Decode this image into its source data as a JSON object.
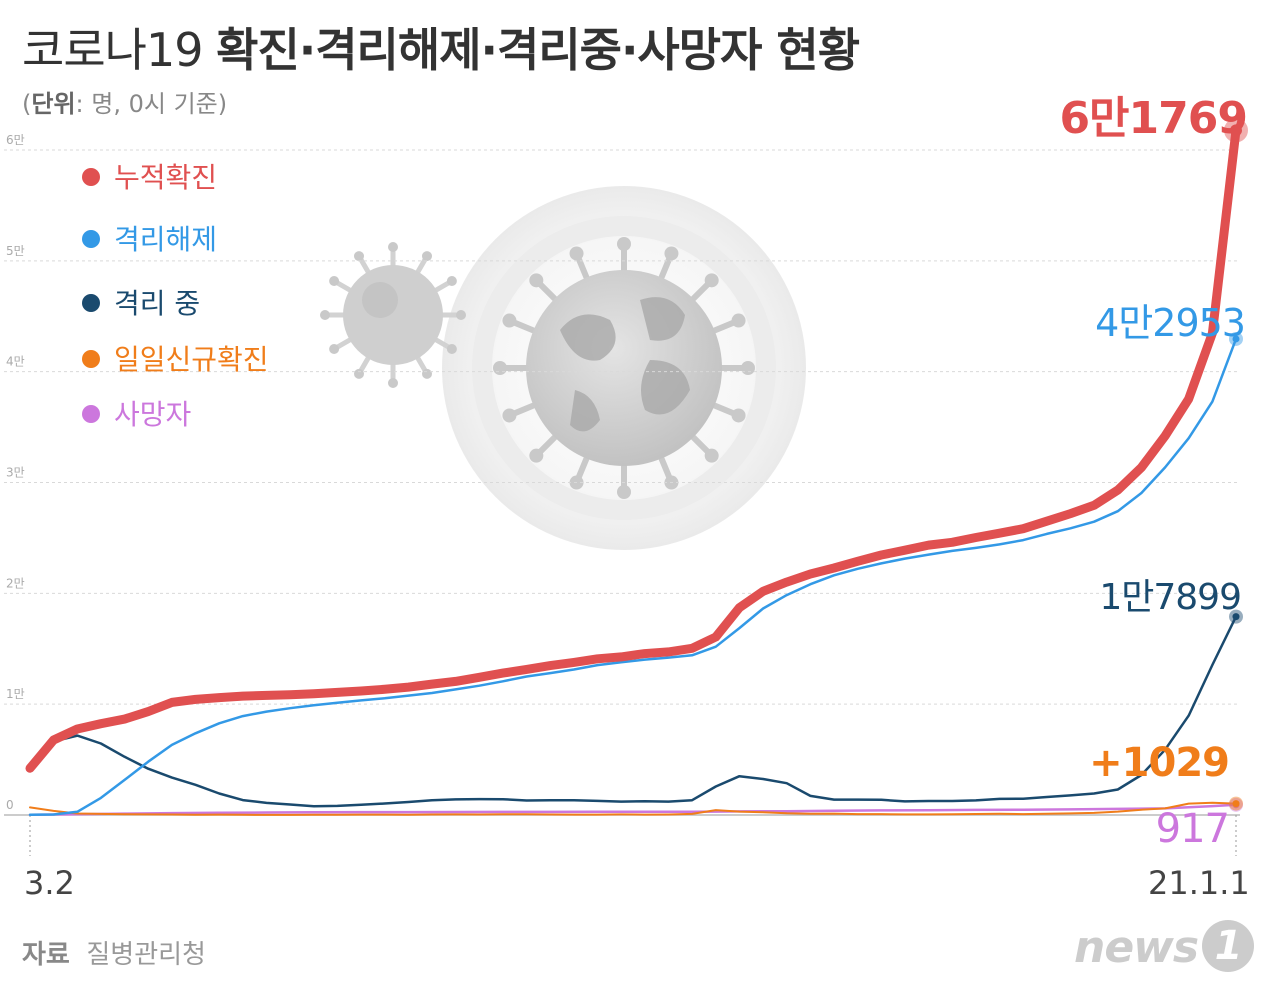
{
  "header": {
    "title_light": "코로나19 ",
    "title_bold": "확진·격리해제·격리중·사망자 현황",
    "unit_label": "단위",
    "unit_text": ": 명, 0시 기준)",
    "unit_open": "("
  },
  "chart_data": {
    "type": "line",
    "title": "코로나19 확진·격리해제·격리중·사망자 현황",
    "unit": "(단위: 명, 0시 기준)",
    "x_start_label": "3.2",
    "x_end_label": "21.1.1",
    "y_ticks": [
      "0",
      "1만",
      "2만",
      "3만",
      "4만",
      "5만",
      "6만"
    ],
    "ylim": [
      0,
      60000
    ],
    "grid": true,
    "legend_position": "top-left",
    "x_range_days": [
      0,
      306
    ],
    "series": [
      {
        "name": "누적확진",
        "color": "#e05050",
        "end_label": "6만1769",
        "end_value": 61769,
        "points": [
          [
            0,
            4212
          ],
          [
            6,
            6767
          ],
          [
            12,
            7755
          ],
          [
            18,
            8236
          ],
          [
            24,
            8652
          ],
          [
            30,
            9332
          ],
          [
            36,
            10156
          ],
          [
            42,
            10432
          ],
          [
            48,
            10591
          ],
          [
            54,
            10728
          ],
          [
            60,
            10790
          ],
          [
            66,
            10854
          ],
          [
            72,
            10936
          ],
          [
            78,
            11061
          ],
          [
            84,
            11191
          ],
          [
            90,
            11344
          ],
          [
            96,
            11541
          ],
          [
            102,
            11814
          ],
          [
            108,
            12051
          ],
          [
            114,
            12421
          ],
          [
            120,
            12800
          ],
          [
            126,
            13137
          ],
          [
            132,
            13479
          ],
          [
            138,
            13771
          ],
          [
            144,
            14092
          ],
          [
            150,
            14269
          ],
          [
            156,
            14562
          ],
          [
            162,
            14714
          ],
          [
            168,
            15039
          ],
          [
            174,
            16058
          ],
          [
            180,
            18706
          ],
          [
            186,
            20182
          ],
          [
            192,
            21010
          ],
          [
            198,
            21743
          ],
          [
            204,
            22285
          ],
          [
            210,
            22893
          ],
          [
            216,
            23455
          ],
          [
            222,
            23889
          ],
          [
            228,
            24353
          ],
          [
            234,
            24606
          ],
          [
            240,
            25035
          ],
          [
            246,
            25424
          ],
          [
            252,
            25836
          ],
          [
            258,
            26511
          ],
          [
            264,
            27195
          ],
          [
            270,
            27942
          ],
          [
            276,
            29311
          ],
          [
            282,
            31353
          ],
          [
            288,
            34201
          ],
          [
            294,
            37546
          ],
          [
            300,
            43484
          ],
          [
            306,
            61769
          ]
        ]
      },
      {
        "name": "격리해제",
        "color": "#3399e6",
        "end_label": "4만2953",
        "end_value": 42953,
        "points": [
          [
            0,
            17
          ],
          [
            6,
            41
          ],
          [
            12,
            288
          ],
          [
            18,
            1540
          ],
          [
            24,
            3166
          ],
          [
            30,
            4811
          ],
          [
            36,
            6325
          ],
          [
            42,
            7368
          ],
          [
            48,
            8277
          ],
          [
            54,
            8922
          ],
          [
            60,
            9333
          ],
          [
            66,
            9632
          ],
          [
            72,
            9904
          ],
          [
            78,
            10128
          ],
          [
            84,
            10340
          ],
          [
            90,
            10531
          ],
          [
            96,
            10776
          ],
          [
            102,
            11007
          ],
          [
            108,
            11334
          ],
          [
            114,
            11667
          ],
          [
            120,
            12065
          ],
          [
            126,
            12494
          ],
          [
            132,
            12800
          ],
          [
            138,
            13124
          ],
          [
            144,
            13524
          ],
          [
            150,
            13773
          ],
          [
            156,
            14021
          ],
          [
            162,
            14198
          ],
          [
            168,
            14413
          ],
          [
            174,
            15181
          ],
          [
            180,
            16864
          ],
          [
            186,
            18630
          ],
          [
            192,
            19845
          ],
          [
            198,
            20822
          ],
          [
            204,
            21628
          ],
          [
            210,
            22216
          ],
          [
            216,
            22702
          ],
          [
            222,
            23136
          ],
          [
            228,
            23492
          ],
          [
            234,
            23827
          ],
          [
            240,
            24095
          ],
          [
            246,
            24413
          ],
          [
            252,
            24806
          ],
          [
            258,
            25366
          ],
          [
            264,
            25870
          ],
          [
            270,
            26466
          ],
          [
            276,
            27410
          ],
          [
            282,
            29051
          ],
          [
            288,
            31363
          ],
          [
            294,
            34001
          ],
          [
            300,
            37302
          ],
          [
            306,
            42953
          ]
        ]
      },
      {
        "name": "격리 중",
        "color": "#1a4a6e",
        "end_label": "1만7899",
        "end_value": 17899,
        "points": [
          [
            0,
            4167
          ],
          [
            6,
            6638
          ],
          [
            12,
            7162
          ],
          [
            18,
            6447
          ],
          [
            24,
            5247
          ],
          [
            30,
            4177
          ],
          [
            36,
            3370
          ],
          [
            42,
            2729
          ],
          [
            48,
            1938
          ],
          [
            54,
            1342
          ],
          [
            60,
            1094
          ],
          [
            66,
            950
          ],
          [
            72,
            788
          ],
          [
            78,
            823
          ],
          [
            84,
            918
          ],
          [
            90,
            1040
          ],
          [
            96,
            1176
          ],
          [
            102,
            1332
          ],
          [
            108,
            1412
          ],
          [
            114,
            1437
          ],
          [
            120,
            1428
          ],
          [
            126,
            1307
          ],
          [
            132,
            1337
          ],
          [
            138,
            1336
          ],
          [
            144,
            1273
          ],
          [
            150,
            1213
          ],
          [
            156,
            1243
          ],
          [
            162,
            1205
          ],
          [
            168,
            1335
          ],
          [
            174,
            2570
          ],
          [
            180,
            3499
          ],
          [
            186,
            3249
          ],
          [
            192,
            2870
          ],
          [
            198,
            1722
          ],
          [
            204,
            1390
          ],
          [
            210,
            1387
          ],
          [
            216,
            1369
          ],
          [
            222,
            1226
          ],
          [
            228,
            1266
          ],
          [
            234,
            1264
          ],
          [
            240,
            1320
          ],
          [
            246,
            1456
          ],
          [
            252,
            1469
          ],
          [
            258,
            1621
          ],
          [
            264,
            1771
          ],
          [
            270,
            1939
          ],
          [
            276,
            2304
          ],
          [
            282,
            3613
          ],
          [
            288,
            5893
          ],
          [
            294,
            8969
          ],
          [
            300,
            13540
          ],
          [
            306,
            17899
          ]
        ]
      },
      {
        "name": "일일신규확진",
        "color": "#f07d1a",
        "end_label": "+1029",
        "end_value": 1029,
        "points": [
          [
            0,
            686
          ],
          [
            6,
            367
          ],
          [
            12,
            131
          ],
          [
            18,
            98
          ],
          [
            24,
            76
          ],
          [
            30,
            53
          ],
          [
            36,
            47
          ],
          [
            42,
            27
          ],
          [
            48,
            35
          ],
          [
            54,
            18
          ],
          [
            60,
            10
          ],
          [
            66,
            13
          ],
          [
            72,
            29
          ],
          [
            78,
            28
          ],
          [
            84,
            39
          ],
          [
            90,
            38
          ],
          [
            96,
            28
          ],
          [
            102,
            44
          ],
          [
            108,
            51
          ],
          [
            114,
            48
          ],
          [
            120,
            63
          ],
          [
            126,
            61
          ],
          [
            132,
            43
          ],
          [
            138,
            33
          ],
          [
            144,
            40
          ],
          [
            150,
            58
          ],
          [
            156,
            34
          ],
          [
            162,
            47
          ],
          [
            168,
            103
          ],
          [
            174,
            441
          ],
          [
            180,
            307
          ],
          [
            186,
            253
          ],
          [
            192,
            152
          ],
          [
            198,
            109
          ],
          [
            204,
            126
          ],
          [
            210,
            84
          ],
          [
            216,
            77
          ],
          [
            222,
            53
          ],
          [
            228,
            58
          ],
          [
            234,
            72
          ],
          [
            240,
            91
          ],
          [
            246,
            110
          ],
          [
            252,
            79
          ],
          [
            258,
            118
          ],
          [
            264,
            143
          ],
          [
            270,
            191
          ],
          [
            276,
            303
          ],
          [
            282,
            482
          ],
          [
            288,
            600
          ],
          [
            294,
            1030
          ],
          [
            300,
            1097
          ],
          [
            306,
            1029
          ]
        ]
      },
      {
        "name": "사망자",
        "color": "#cc77dd",
        "end_label": "917",
        "end_value": 917,
        "points": [
          [
            0,
            22
          ],
          [
            12,
            66
          ],
          [
            24,
            124
          ],
          [
            36,
            169
          ],
          [
            48,
            200
          ],
          [
            60,
            229
          ],
          [
            72,
            248
          ],
          [
            84,
            258
          ],
          [
            96,
            263
          ],
          [
            108,
            273
          ],
          [
            120,
            282
          ],
          [
            132,
            283
          ],
          [
            144,
            289
          ],
          [
            156,
            296
          ],
          [
            168,
            301
          ],
          [
            174,
            310
          ],
          [
            180,
            324
          ],
          [
            192,
            344
          ],
          [
            204,
            384
          ],
          [
            216,
            413
          ],
          [
            228,
            432
          ],
          [
            240,
            459
          ],
          [
            252,
            478
          ],
          [
            264,
            505
          ],
          [
            276,
            547
          ],
          [
            288,
            600
          ],
          [
            300,
            800
          ],
          [
            306,
            917
          ]
        ]
      }
    ]
  },
  "credits": {
    "source_label": "자료",
    "source_text": "질병관리청",
    "logo_text": "news",
    "logo_mark": "1"
  }
}
